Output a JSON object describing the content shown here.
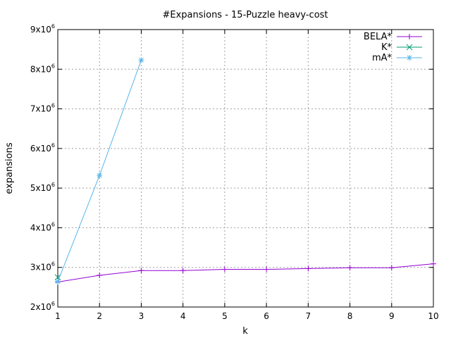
{
  "chart_data": {
    "type": "line",
    "title": "#Expansions - 15-Puzzle heavy-cost",
    "xlabel": "k",
    "ylabel": "expansions",
    "xlim": [
      1,
      10
    ],
    "ylim": [
      2000000,
      9000000
    ],
    "x_ticks": [
      "1",
      "2",
      "3",
      "4",
      "5",
      "6",
      "7",
      "8",
      "9",
      "10"
    ],
    "y_ticks": [
      {
        "base": "2x10",
        "exp": "6",
        "value": 2000000
      },
      {
        "base": "3x10",
        "exp": "6",
        "value": 3000000
      },
      {
        "base": "4x10",
        "exp": "6",
        "value": 4000000
      },
      {
        "base": "5x10",
        "exp": "6",
        "value": 5000000
      },
      {
        "base": "6x10",
        "exp": "6",
        "value": 6000000
      },
      {
        "base": "7x10",
        "exp": "6",
        "value": 7000000
      },
      {
        "base": "8x10",
        "exp": "6",
        "value": 8000000
      },
      {
        "base": "9x10",
        "exp": "6",
        "value": 9000000
      }
    ],
    "grid": true,
    "legend_position": "top-right",
    "series": [
      {
        "name": "BELA*",
        "color": "#9400d3",
        "marker": "plus",
        "x": [
          1,
          2,
          3,
          4,
          5,
          6,
          7,
          8,
          9,
          10
        ],
        "values": [
          2630000,
          2800000,
          2920000,
          2920000,
          2950000,
          2950000,
          2970000,
          2990000,
          2990000,
          3090000
        ]
      },
      {
        "name": "K*",
        "color": "#009e73",
        "marker": "cross",
        "x": [
          1
        ],
        "values": [
          2750000
        ]
      },
      {
        "name": "mA*",
        "color": "#56b4e9",
        "marker": "star",
        "x": [
          1,
          2,
          3
        ],
        "values": [
          2640000,
          5320000,
          8230000
        ]
      }
    ]
  }
}
